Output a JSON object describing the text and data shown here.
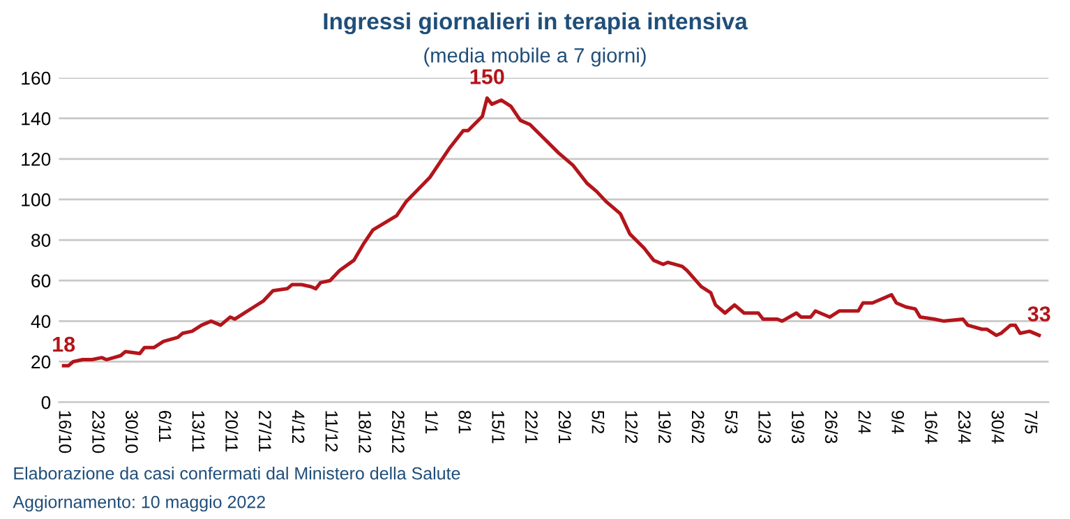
{
  "chart_data": {
    "type": "line",
    "title": "Ingressi giornalieri in terapia intensiva",
    "subtitle": "(media mobile a 7 giorni)",
    "x": [
      "2021-10-16",
      "2021-10-17",
      "2021-10-18",
      "2021-10-20",
      "2021-10-22",
      "2021-10-24",
      "2021-10-25",
      "2021-10-28",
      "2021-10-29",
      "2021-11-01",
      "2021-11-02",
      "2021-11-04",
      "2021-11-06",
      "2021-11-09",
      "2021-11-10",
      "2021-11-12",
      "2021-11-14",
      "2021-11-16",
      "2021-11-18",
      "2021-11-20",
      "2021-11-21",
      "2021-11-23",
      "2021-11-25",
      "2021-11-27",
      "2021-11-29",
      "2021-12-02",
      "2021-12-03",
      "2021-12-05",
      "2021-12-07",
      "2021-12-08",
      "2021-12-09",
      "2021-12-11",
      "2021-12-13",
      "2021-12-16",
      "2021-12-18",
      "2021-12-20",
      "2021-12-25",
      "2021-12-27",
      "2022-01-01",
      "2022-01-03",
      "2022-01-05",
      "2022-01-08",
      "2022-01-09",
      "2022-01-12",
      "2022-01-13",
      "2022-01-14",
      "2022-01-16",
      "2022-01-18",
      "2022-01-20",
      "2022-01-22",
      "2022-01-25",
      "2022-01-28",
      "2022-01-31",
      "2022-02-03",
      "2022-02-05",
      "2022-02-07",
      "2022-02-10",
      "2022-02-12",
      "2022-02-15",
      "2022-02-17",
      "2022-02-19",
      "2022-02-20",
      "2022-02-23",
      "2022-02-24",
      "2022-02-27",
      "2022-03-01",
      "2022-03-02",
      "2022-03-04",
      "2022-03-06",
      "2022-03-08",
      "2022-03-11",
      "2022-03-12",
      "2022-03-15",
      "2022-03-16",
      "2022-03-19",
      "2022-03-20",
      "2022-03-22",
      "2022-03-23",
      "2022-03-24",
      "2022-03-26",
      "2022-03-28",
      "2022-03-31",
      "2022-04-01",
      "2022-04-02",
      "2022-04-04",
      "2022-04-05",
      "2022-04-08",
      "2022-04-09",
      "2022-04-11",
      "2022-04-13",
      "2022-04-14",
      "2022-04-17",
      "2022-04-19",
      "2022-04-23",
      "2022-04-24",
      "2022-04-27",
      "2022-04-28",
      "2022-04-30",
      "2022-05-01",
      "2022-05-03",
      "2022-05-04",
      "2022-05-05",
      "2022-05-07",
      "2022-05-09"
    ],
    "series": [
      {
        "color": "#b3151b",
        "values": [
          18,
          18,
          20,
          21,
          21,
          22,
          21,
          23,
          25,
          24,
          27,
          27,
          30,
          32,
          34,
          35,
          38,
          40,
          38,
          42,
          41,
          44,
          47,
          50,
          55,
          56,
          58,
          58,
          57,
          56,
          59,
          60,
          65,
          70,
          78,
          85,
          92,
          99,
          111,
          118,
          125,
          134,
          134,
          141,
          150,
          147,
          149,
          146,
          139,
          137,
          130,
          123,
          117,
          108,
          104,
          99,
          93,
          83,
          76,
          70,
          68,
          69,
          67,
          65,
          57,
          54,
          48,
          44,
          48,
          44,
          44,
          41,
          41,
          40,
          44,
          42,
          42,
          45,
          44,
          42,
          45,
          45,
          45,
          49,
          49,
          50,
          53,
          49,
          47,
          46,
          42,
          41,
          40,
          41,
          38,
          36,
          36,
          33,
          34,
          38,
          38,
          34,
          35,
          33
        ]
      }
    ],
    "annotations": [
      {
        "text": "18",
        "x": "2021-10-16",
        "y": 18
      },
      {
        "text": "150",
        "x": "2022-01-13",
        "y": 150
      },
      {
        "text": "33",
        "x": "2022-05-09",
        "y": 33
      },
      "Elaborazione da casi confermati dal Ministero della Salute",
      "Aggiornamento: 10 maggio 2022"
    ],
    "xlim": [
      "2021-10-15",
      "2022-05-11"
    ],
    "xticks": [
      {
        "value": "2021-10-16",
        "label": "16/10"
      },
      {
        "value": "2021-10-23",
        "label": "23/10"
      },
      {
        "value": "2021-10-30",
        "label": "30/10"
      },
      {
        "value": "2021-11-06",
        "label": "6/11"
      },
      {
        "value": "2021-11-13",
        "label": "13/11"
      },
      {
        "value": "2021-11-20",
        "label": "20/11"
      },
      {
        "value": "2021-11-27",
        "label": "27/11"
      },
      {
        "value": "2021-12-04",
        "label": "4/12"
      },
      {
        "value": "2021-12-11",
        "label": "11/12"
      },
      {
        "value": "2021-12-18",
        "label": "18/12"
      },
      {
        "value": "2021-12-25",
        "label": "25/12"
      },
      {
        "value": "2022-01-01",
        "label": "1/1"
      },
      {
        "value": "2022-01-08",
        "label": "8/1"
      },
      {
        "value": "2022-01-15",
        "label": "15/1"
      },
      {
        "value": "2022-01-22",
        "label": "22/1"
      },
      {
        "value": "2022-01-29",
        "label": "29/1"
      },
      {
        "value": "2022-02-05",
        "label": "5/2"
      },
      {
        "value": "2022-02-12",
        "label": "12/2"
      },
      {
        "value": "2022-02-19",
        "label": "19/2"
      },
      {
        "value": "2022-02-26",
        "label": "26/2"
      },
      {
        "value": "2022-03-05",
        "label": "5/3"
      },
      {
        "value": "2022-03-12",
        "label": "12/3"
      },
      {
        "value": "2022-03-19",
        "label": "19/3"
      },
      {
        "value": "2022-03-26",
        "label": "26/3"
      },
      {
        "value": "2022-04-02",
        "label": "2/4"
      },
      {
        "value": "2022-04-09",
        "label": "9/4"
      },
      {
        "value": "2022-04-16",
        "label": "16/4"
      },
      {
        "value": "2022-04-23",
        "label": "23/4"
      },
      {
        "value": "2022-04-30",
        "label": "30/4"
      },
      {
        "value": "2022-05-07",
        "label": "7/5"
      }
    ],
    "ylim": [
      0,
      160
    ],
    "yticks": [
      0,
      20,
      40,
      60,
      80,
      100,
      120,
      140,
      160
    ],
    "grid": "y",
    "legend": false,
    "marker": "none",
    "line_style": "solid"
  }
}
